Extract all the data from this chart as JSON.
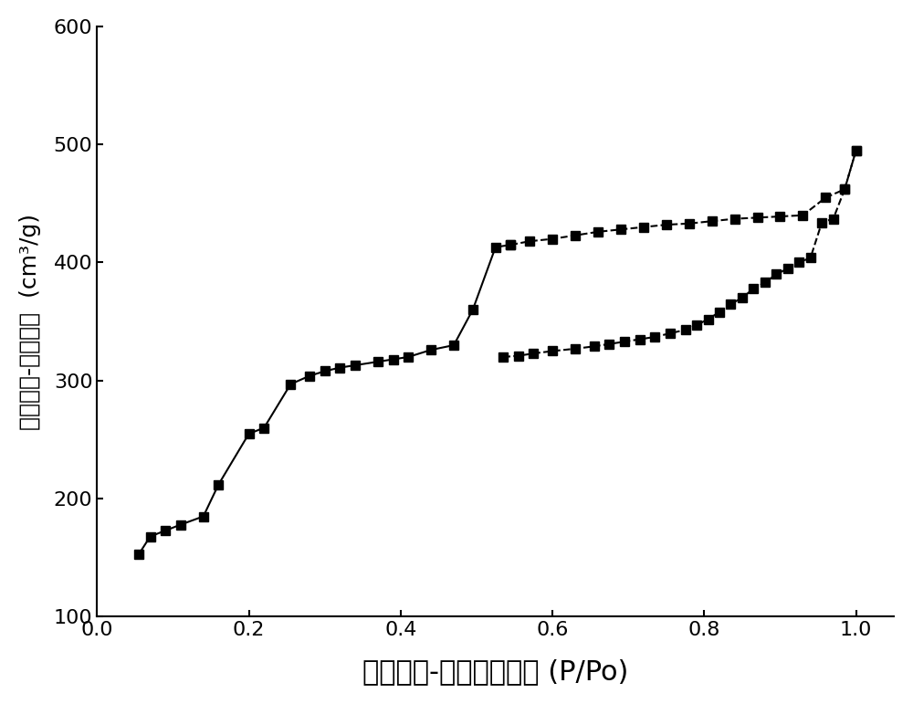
{
  "adsorption_x": [
    0.055,
    0.07,
    0.09,
    0.11,
    0.14,
    0.16,
    0.2,
    0.22,
    0.255,
    0.28,
    0.3,
    0.32,
    0.34,
    0.37,
    0.39,
    0.41,
    0.44,
    0.47,
    0.495,
    0.525,
    0.545,
    0.57,
    0.6,
    0.63,
    0.66,
    0.69,
    0.72,
    0.75,
    0.78,
    0.81,
    0.84,
    0.87,
    0.9,
    0.93,
    0.96,
    0.985,
    1.0
  ],
  "adsorption_y": [
    153,
    168,
    173,
    178,
    185,
    212,
    255,
    260,
    297,
    304,
    308,
    311,
    313,
    316,
    318,
    320,
    326,
    330,
    360,
    413,
    415,
    418,
    420,
    423,
    426,
    428,
    430,
    432,
    433,
    435,
    437,
    438,
    439,
    440,
    455,
    462,
    495
  ],
  "desorption_x": [
    1.0,
    0.985,
    0.97,
    0.955,
    0.94,
    0.925,
    0.91,
    0.895,
    0.88,
    0.865,
    0.85,
    0.835,
    0.82,
    0.805,
    0.79,
    0.775,
    0.755,
    0.735,
    0.715,
    0.695,
    0.675,
    0.655,
    0.63,
    0.6,
    0.575,
    0.555,
    0.535
  ],
  "desorption_y": [
    495,
    462,
    437,
    434,
    404,
    400,
    395,
    390,
    383,
    378,
    370,
    365,
    358,
    352,
    347,
    343,
    340,
    337,
    335,
    333,
    331,
    329,
    327,
    325,
    323,
    321,
    320
  ],
  "xlabel": "氮气吸附-脱附相对压力 (P/Po)",
  "ylabel": "氮气吸附-脱附体积  (cm³/g)",
  "xlim": [
    0.0,
    1.05
  ],
  "ylim": [
    100,
    600
  ],
  "xticks": [
    0.0,
    0.2,
    0.4,
    0.6,
    0.8,
    1.0
  ],
  "yticks": [
    100,
    200,
    300,
    400,
    500,
    600
  ],
  "line_color": "#000000",
  "marker": "s",
  "marker_size": 7,
  "line_style_ads": "-",
  "line_style_des": "--",
  "background_color": "#ffffff",
  "xlabel_fontsize": 22,
  "ylabel_fontsize": 18,
  "tick_fontsize": 16
}
